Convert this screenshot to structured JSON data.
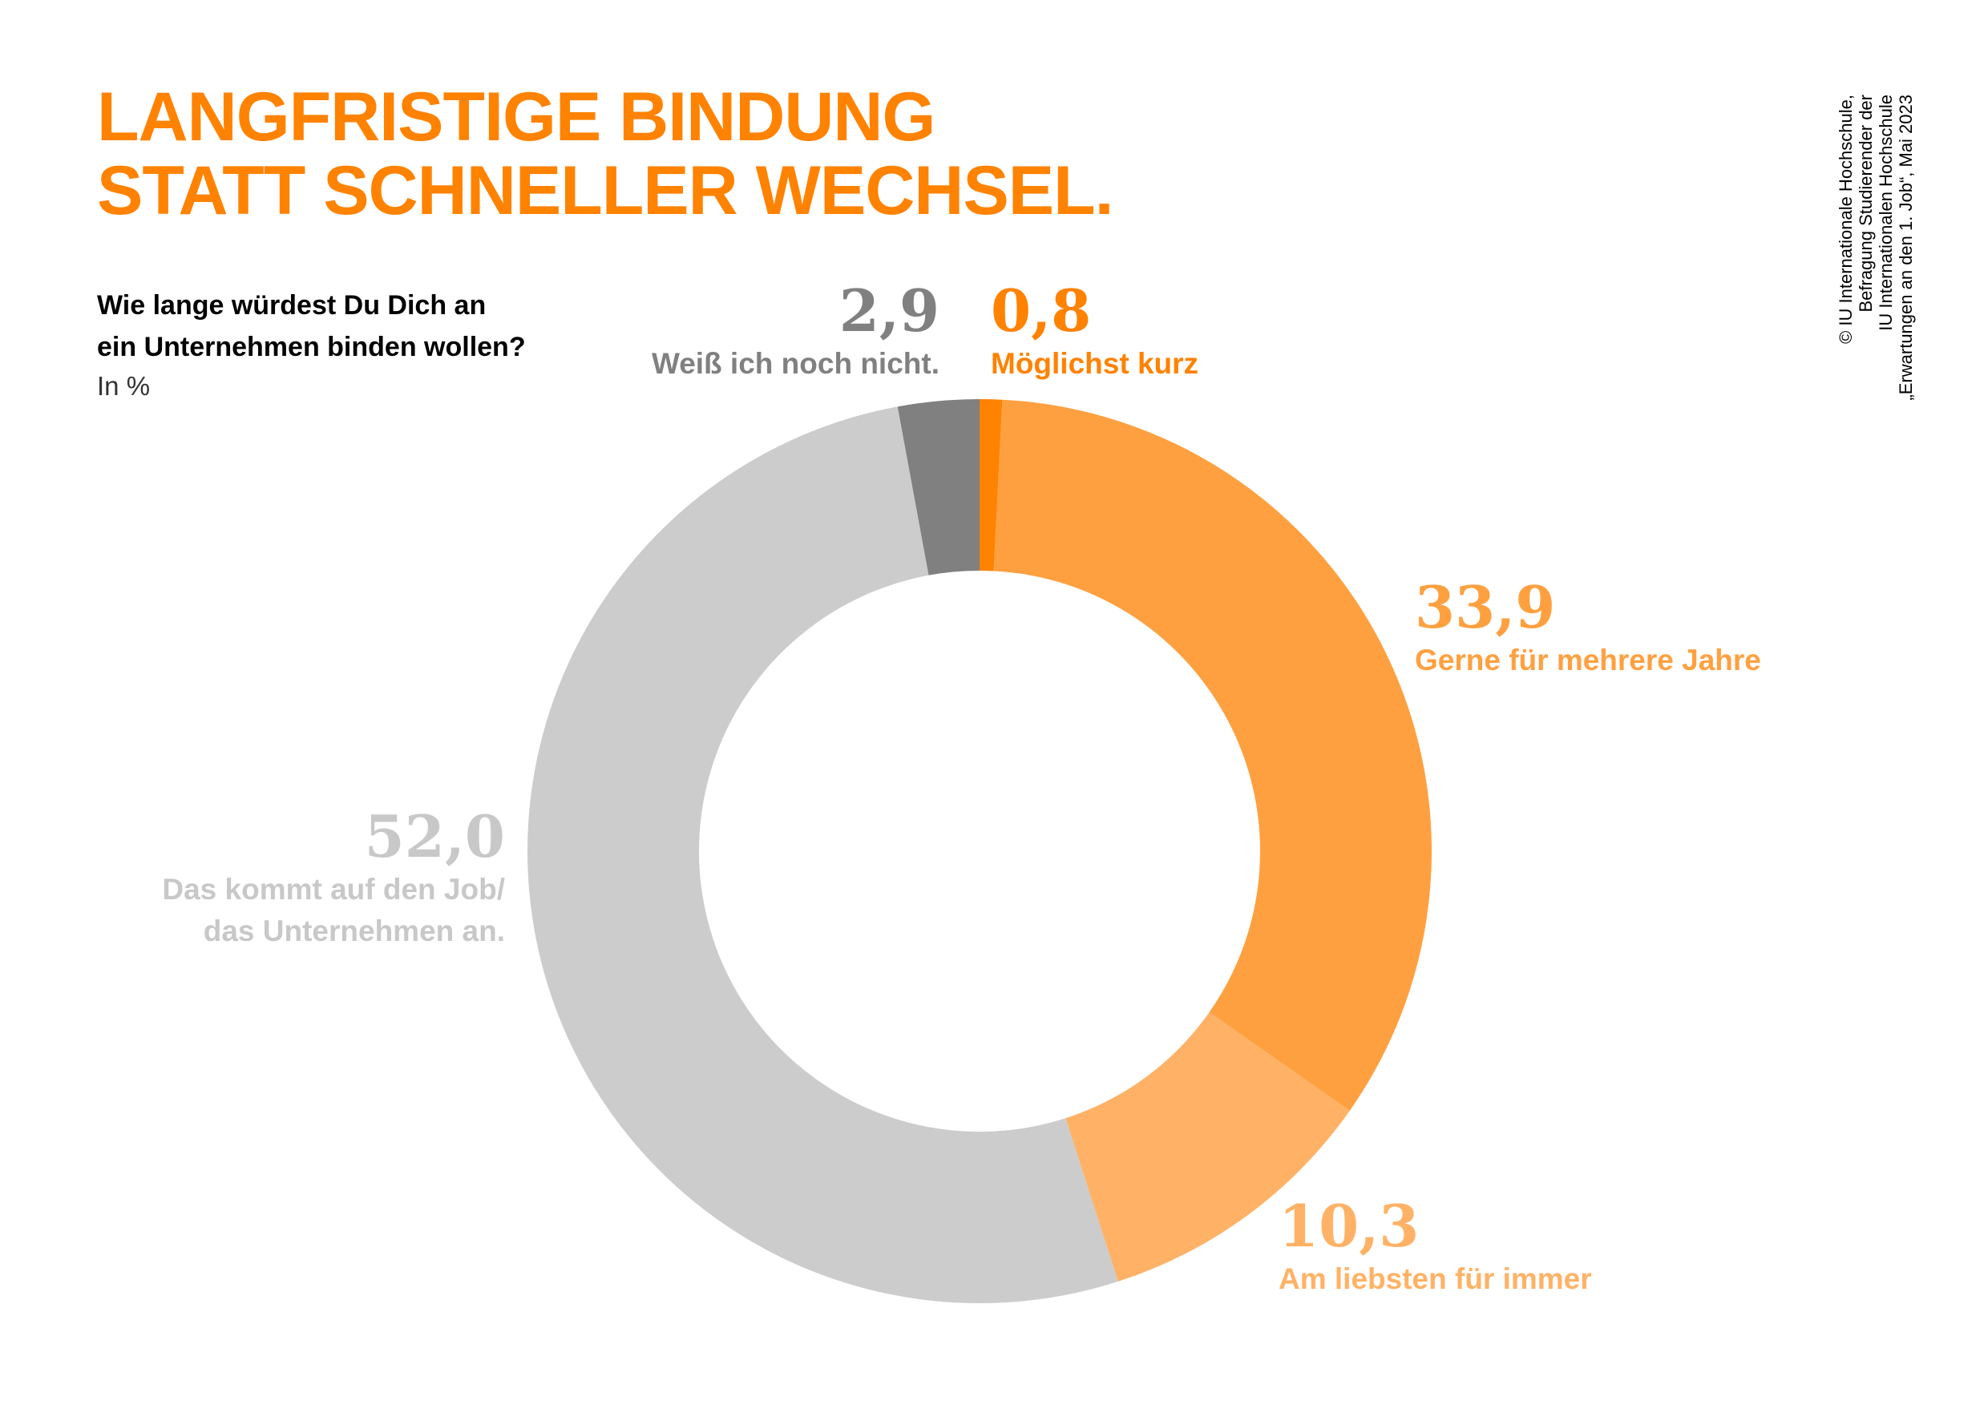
{
  "title_lines": [
    "LANGFRISTIGE BINDUNG",
    "STATT SCHNELLER WECHSEL."
  ],
  "question_lines": [
    "Wie lange würdest Du Dich an",
    "ein Unternehmen binden wollen?"
  ],
  "unit": "In %",
  "credit_lines": [
    "© IU Internationale Hochschule,",
    "Befragung Studierender der",
    "IU Internationalen Hochschule",
    "„Erwartungen an den 1. Job“, Mai 2023"
  ],
  "chart_data": {
    "type": "pie",
    "donut": true,
    "start": "top, clockwise",
    "slices": [
      {
        "label": "Möglichst kurz",
        "value": 0.8,
        "value_text": "0,8",
        "color": "#ff8200"
      },
      {
        "label": "Gerne für mehrere Jahre",
        "value": 33.9,
        "value_text": "33,9",
        "color": "#ffa040"
      },
      {
        "label": "Am liebsten für immer",
        "value": 10.3,
        "value_text": "10,3",
        "color": "#ffb266"
      },
      {
        "label": "Das kommt auf den Job/ das Unternehmen an.",
        "label_lines": [
          "Das kommt auf den Job/",
          "das Unternehmen an."
        ],
        "value": 52.0,
        "value_text": "52,0",
        "color": "#cccccc"
      },
      {
        "label": "Weiß ich noch nicht.",
        "value": 2.9,
        "value_text": "2,9",
        "color": "#808080"
      }
    ]
  }
}
